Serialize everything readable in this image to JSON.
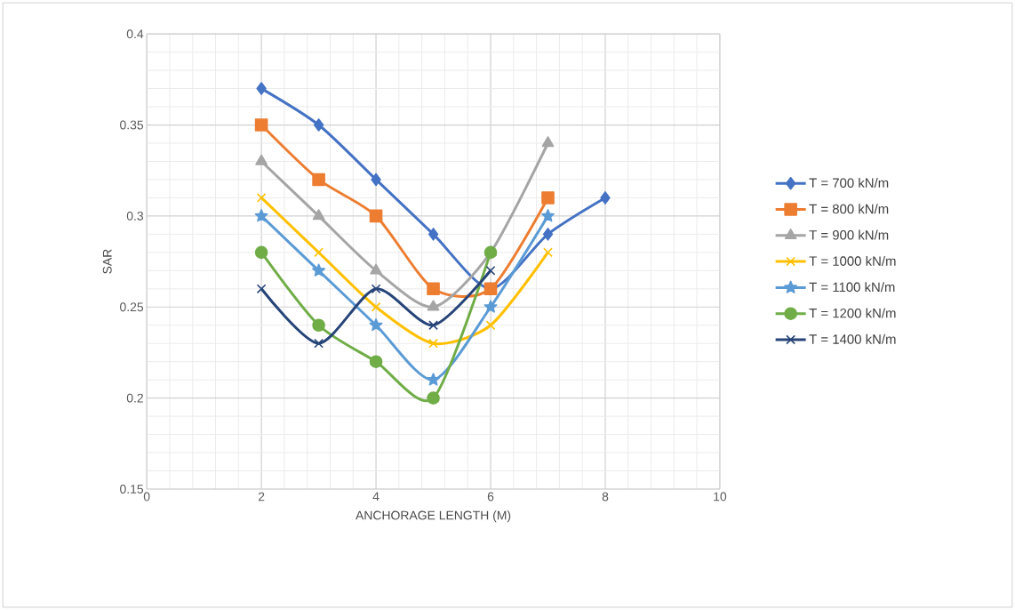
{
  "chart_data": {
    "type": "line",
    "xlabel": "ANCHORAGE LENGTH (M)",
    "ylabel": "SAR",
    "x": [
      2,
      3,
      4,
      5,
      6,
      7,
      8
    ],
    "series": [
      {
        "name": "T = 700 kN/m",
        "color": "#4472c4",
        "marker": "diamond",
        "values": [
          0.37,
          0.35,
          0.32,
          0.29,
          0.26,
          0.29,
          0.31
        ]
      },
      {
        "name": "T = 800 kN/m",
        "color": "#ed7d31",
        "marker": "square",
        "values": [
          0.35,
          0.32,
          0.3,
          0.26,
          0.26,
          0.31,
          null
        ]
      },
      {
        "name": "T = 900 kN/m",
        "color": "#a5a5a5",
        "marker": "triangle",
        "values": [
          0.33,
          0.3,
          0.27,
          0.25,
          0.28,
          0.34,
          null
        ]
      },
      {
        "name": "T = 1000 kN/m",
        "color": "#ffc000",
        "marker": "cross",
        "values": [
          0.31,
          0.28,
          0.25,
          0.23,
          0.24,
          0.28,
          null
        ]
      },
      {
        "name": "T = 1100 kN/m",
        "color": "#5b9bd5",
        "marker": "star",
        "values": [
          0.3,
          0.27,
          0.24,
          0.21,
          0.25,
          0.3,
          null
        ]
      },
      {
        "name": "T = 1200 kN/m",
        "color": "#70ad47",
        "marker": "circle",
        "values": [
          0.28,
          0.24,
          0.22,
          0.2,
          0.28,
          null,
          null
        ]
      },
      {
        "name": "T = 1400 kN/m",
        "color": "#264478",
        "marker": "cross",
        "values": [
          0.26,
          0.23,
          0.26,
          0.24,
          0.27,
          null,
          null
        ]
      }
    ],
    "xlim": [
      0,
      10
    ],
    "xticks": [
      0,
      2,
      4,
      6,
      8,
      10
    ],
    "ylim": [
      0.15,
      0.4
    ],
    "yticks": [
      0.15,
      0.2,
      0.25,
      0.3,
      0.35,
      0.4
    ],
    "grid": true,
    "legend": "right",
    "line_style": "solid"
  }
}
